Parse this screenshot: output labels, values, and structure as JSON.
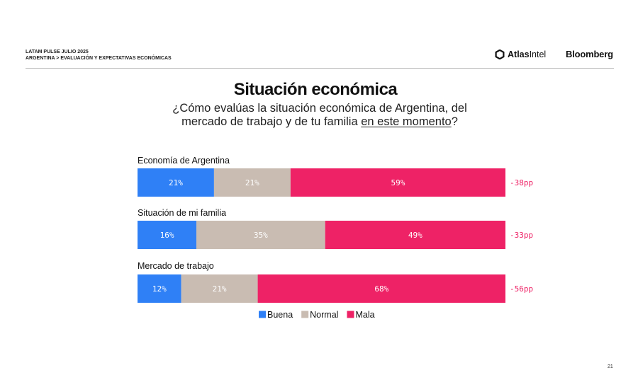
{
  "header": {
    "line1": "LATAM PULSE JULIO 2025",
    "line2": "ARGENTINA > EVALUACIÓN Y EXPECTATIVAS ECONÓMICAS"
  },
  "brands": {
    "atlas_part1": "Atlas",
    "atlas_part2": "Intel",
    "bloomberg": "Bloomberg"
  },
  "title": "Situación económica",
  "subtitle": {
    "line1": "¿Cómo evalúas la situación económica de Argentina, del",
    "line2_prefix": "mercado de trabajo y de tu familia ",
    "line2_underlined": "en este momento",
    "line2_suffix": "?"
  },
  "page_number": "21",
  "chart_data": {
    "type": "bar",
    "orientation": "horizontal",
    "stacked": true,
    "categories": [
      "Economía de Argentina",
      "Situación de mi familia",
      "Mercado de trabajo"
    ],
    "series": [
      {
        "name": "Buena",
        "color": "#2f80f6",
        "values": [
          21,
          16,
          12
        ]
      },
      {
        "name": "Normal",
        "color": "#c9bcb2",
        "values": [
          21,
          35,
          21
        ]
      },
      {
        "name": "Mala",
        "color": "#ee2266",
        "values": [
          59,
          49,
          68
        ]
      }
    ],
    "value_labels": [
      [
        "21%",
        "21%",
        "59%"
      ],
      [
        "16%",
        "35%",
        "49%"
      ],
      [
        "12%",
        "21%",
        "68%"
      ]
    ],
    "net": [
      "-38pp",
      "-33pp",
      "-56pp"
    ],
    "net_color": "#ee2266",
    "legend_position": "bottom-center"
  }
}
